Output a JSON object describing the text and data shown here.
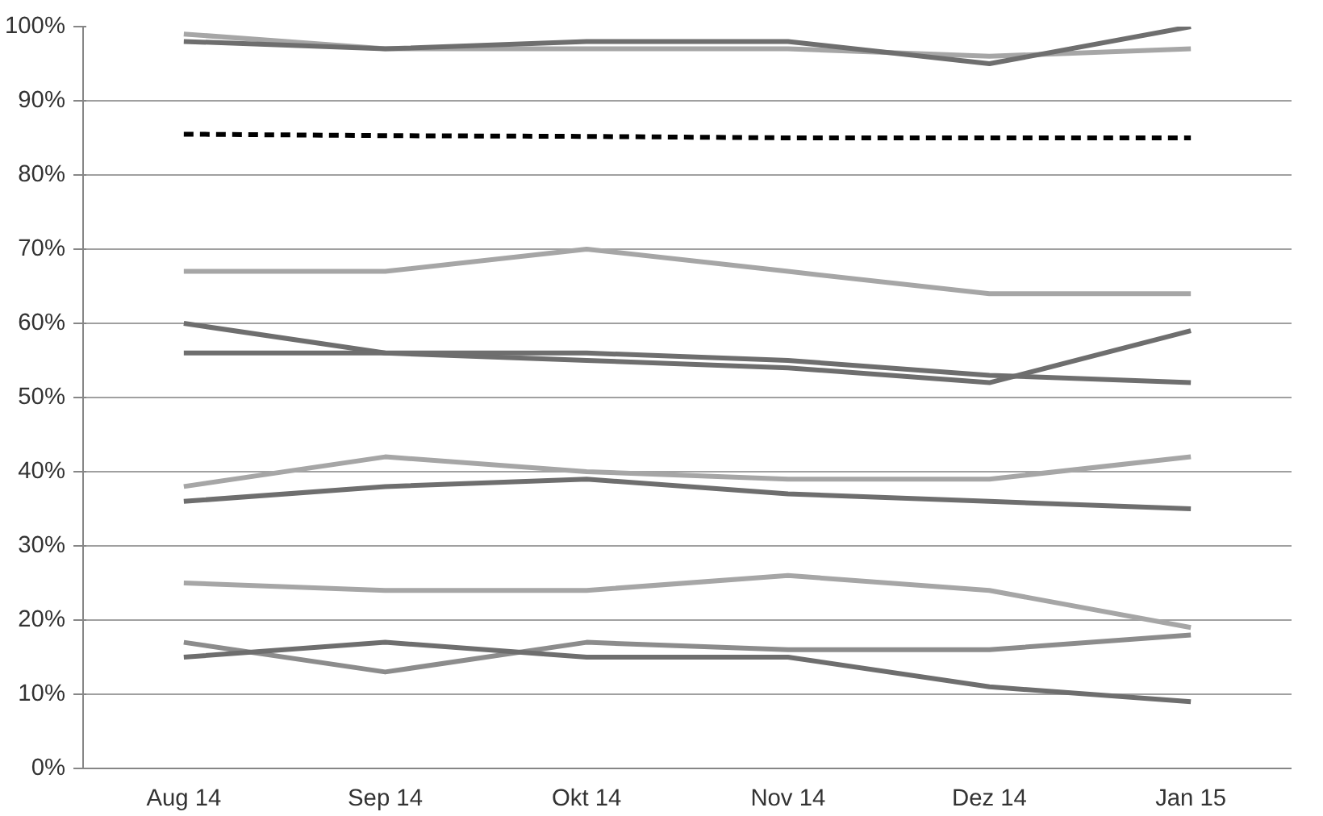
{
  "chart_data": {
    "type": "line",
    "categories": [
      "Aug 14",
      "Sep 14",
      "Okt 14",
      "Nov 14",
      "Dez 14",
      "Jan 15"
    ],
    "ylim": [
      0,
      100
    ],
    "yticks": [
      {
        "value": 0,
        "label": "0%"
      },
      {
        "value": 10,
        "label": "10%"
      },
      {
        "value": 20,
        "label": "20%"
      },
      {
        "value": 30,
        "label": "30%"
      },
      {
        "value": 40,
        "label": "40%"
      },
      {
        "value": 50,
        "label": "50%"
      },
      {
        "value": 60,
        "label": "60%"
      },
      {
        "value": 70,
        "label": "70%"
      },
      {
        "value": 80,
        "label": "80%"
      },
      {
        "value": 90,
        "label": "90%"
      },
      {
        "value": 100,
        "label": "100%"
      }
    ],
    "grid": "y",
    "marker": "none",
    "series": [
      {
        "color": "#a6a6a6",
        "values": [
          99,
          97,
          97,
          97,
          96,
          97
        ]
      },
      {
        "color": "#6e6e6e",
        "values": [
          98,
          97,
          98,
          98,
          95,
          100
        ]
      },
      {
        "color": "#000000",
        "line_style": "dashed",
        "values": [
          85.5,
          85.3,
          85.2,
          85,
          85,
          85
        ]
      },
      {
        "color": "#a6a6a6",
        "values": [
          67,
          67,
          70,
          67,
          64,
          64
        ]
      },
      {
        "color": "#6e6e6e",
        "values": [
          60,
          56,
          55,
          54,
          52,
          59
        ]
      },
      {
        "color": "#6e6e6e",
        "values": [
          56,
          56,
          56,
          55,
          53,
          52
        ]
      },
      {
        "color": "#a6a6a6",
        "values": [
          38,
          42,
          40,
          39,
          39,
          42
        ]
      },
      {
        "color": "#6e6e6e",
        "values": [
          36,
          38,
          39,
          37,
          36,
          35
        ]
      },
      {
        "color": "#a6a6a6",
        "values": [
          25,
          24,
          24,
          26,
          24,
          19
        ]
      },
      {
        "color": "#8c8c8c",
        "values": [
          17,
          13,
          17,
          16,
          16,
          18
        ]
      },
      {
        "color": "#6e6e6e",
        "values": [
          15,
          17,
          15,
          15,
          11,
          9
        ]
      }
    ]
  }
}
